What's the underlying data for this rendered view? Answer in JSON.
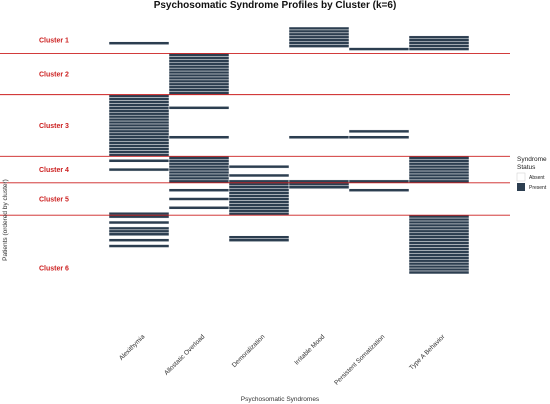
{
  "chart_data": {
    "type": "heatmap",
    "title": "Psychosomatic Syndrome Profiles by Cluster (k=6)",
    "xlabel": "Psychosomatic Syndromes",
    "ylabel": "Patients (ordered by cluster)",
    "categories": [
      "Alexithymia",
      "Allostatic Overload",
      "Demoralization",
      "Irritable Mood",
      "Persistent Somatization",
      "Type A Behavior"
    ],
    "legend": {
      "title": [
        "Syndrome",
        "Status"
      ],
      "items": [
        {
          "label": "Absent",
          "color": "#ffffff"
        },
        {
          "label": "Present",
          "color": "#2c3e50"
        }
      ],
      "position": "right"
    },
    "colors": {
      "present": "#2c3e50",
      "absent": "#ffffff",
      "separator": "#cc1f1f",
      "cluster_label": "#cc1f1f"
    },
    "n_patients": 100,
    "clusters": [
      {
        "label": "Cluster 1",
        "start": 0,
        "end": 9
      },
      {
        "label": "Cluster 2",
        "start": 9,
        "end": 23
      },
      {
        "label": "Cluster 3",
        "start": 23,
        "end": 44
      },
      {
        "label": "Cluster 4",
        "start": 44,
        "end": 53
      },
      {
        "label": "Cluster 5",
        "start": 53,
        "end": 64
      },
      {
        "label": "Cluster 6",
        "start": 64,
        "end": 100
      }
    ],
    "present": {
      "Alexithymia": [
        [
          5,
          6
        ],
        [
          23,
          44
        ],
        [
          45,
          46
        ],
        [
          48,
          49
        ],
        [
          63,
          65
        ],
        [
          66,
          67
        ],
        [
          68,
          69
        ],
        [
          69,
          71
        ],
        [
          72,
          73
        ],
        [
          74,
          75
        ]
      ],
      "Allostatic Overload": [
        [
          9,
          23
        ],
        [
          27,
          28
        ],
        [
          37,
          38
        ],
        [
          44,
          53
        ],
        [
          55,
          56
        ],
        [
          58,
          59
        ],
        [
          61,
          62
        ]
      ],
      "Demoralization": [
        [
          47,
          48
        ],
        [
          50,
          51
        ],
        [
          52,
          64
        ],
        [
          71,
          73
        ]
      ],
      "Irritable Mood": [
        [
          0,
          7
        ],
        [
          37,
          38
        ],
        [
          52,
          55
        ]
      ],
      "Persistent Somatization": [
        [
          7,
          8
        ],
        [
          35,
          36
        ],
        [
          37,
          38
        ],
        [
          52,
          53
        ],
        [
          55,
          56
        ]
      ],
      "Type A Behavior": [
        [
          3,
          8
        ],
        [
          44,
          53
        ],
        [
          64,
          84
        ]
      ]
    }
  }
}
